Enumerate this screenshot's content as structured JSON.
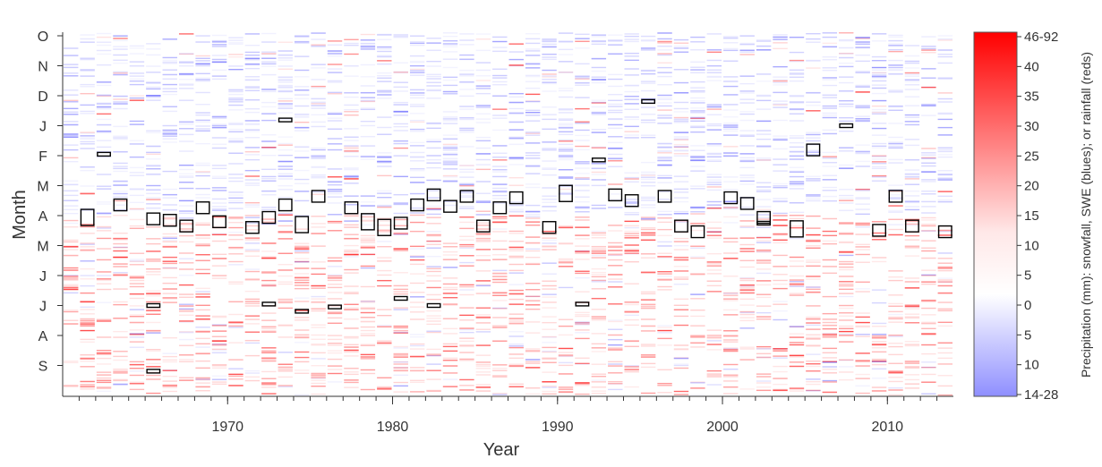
{
  "chart_data": {
    "type": "heatmap",
    "title": "",
    "xlabel": "Year",
    "ylabel": "Month",
    "x_range": [
      1960,
      2014
    ],
    "x_ticks": [
      {
        "value": 1970,
        "label": "1970"
      },
      {
        "value": 1980,
        "label": "1980"
      },
      {
        "value": 1990,
        "label": "1990"
      },
      {
        "value": 2000,
        "label": "2000"
      },
      {
        "value": 2010,
        "label": "2010"
      }
    ],
    "x_minor_tick_step": 1,
    "y_order": "October at top, water year running downward to September",
    "y_ticks": [
      "O",
      "N",
      "D",
      "J",
      "F",
      "M",
      "A",
      "M",
      "J",
      "J",
      "A",
      "S"
    ],
    "grid": false,
    "colorbar": {
      "label": "Precipitation (mm): snowfall, SWE (blues); or rainfall (reds)",
      "ticks": [
        "46-92",
        "40",
        "35",
        "30",
        "25",
        "20",
        "15",
        "10",
        "5",
        "0",
        "5",
        "10",
        "14-28"
      ],
      "top_color": "#ff0000",
      "middle_color": "#ffffff",
      "bottom_color": "#8f8fff",
      "blue_scale": "snowfall / SWE",
      "red_scale": "rainfall"
    },
    "overlay_note_marks": "black-outlined boxes mark individual events per year",
    "highlight_events": [
      {
        "year": 1961,
        "month": "A",
        "size": "large"
      },
      {
        "year": 1962,
        "month": "F",
        "size": "thin"
      },
      {
        "year": 1963,
        "month": "M",
        "size": "medium"
      },
      {
        "year": 1965,
        "month": "A",
        "size": "medium"
      },
      {
        "year": 1965,
        "month": "J",
        "size": "thin"
      },
      {
        "year": 1965,
        "month": "S",
        "size": "thin"
      },
      {
        "year": 1966,
        "month": "A",
        "size": "medium"
      },
      {
        "year": 1967,
        "month": "A",
        "size": "medium"
      },
      {
        "year": 1968,
        "month": "M",
        "size": "medium"
      },
      {
        "year": 1969,
        "month": "A",
        "size": "medium"
      },
      {
        "year": 1971,
        "month": "A",
        "size": "medium"
      },
      {
        "year": 1972,
        "month": "A",
        "size": "medium"
      },
      {
        "year": 1972,
        "month": "J",
        "size": "thin"
      },
      {
        "year": 1973,
        "month": "M",
        "size": "medium"
      },
      {
        "year": 1973,
        "month": "J",
        "size": "thin"
      },
      {
        "year": 1974,
        "month": "A",
        "size": "large"
      },
      {
        "year": 1974,
        "month": "J",
        "size": "thin"
      },
      {
        "year": 1975,
        "month": "M",
        "size": "medium"
      },
      {
        "year": 1976,
        "month": "J",
        "size": "thin"
      },
      {
        "year": 1977,
        "month": "M",
        "size": "medium"
      },
      {
        "year": 1978,
        "month": "A",
        "size": "large"
      },
      {
        "year": 1979,
        "month": "A",
        "size": "large"
      },
      {
        "year": 1980,
        "month": "J",
        "size": "thin"
      },
      {
        "year": 1980,
        "month": "A",
        "size": "medium"
      },
      {
        "year": 1981,
        "month": "M",
        "size": "medium"
      },
      {
        "year": 1982,
        "month": "M",
        "size": "medium"
      },
      {
        "year": 1982,
        "month": "J",
        "size": "thin"
      },
      {
        "year": 1983,
        "month": "M",
        "size": "medium"
      },
      {
        "year": 1984,
        "month": "M",
        "size": "medium"
      },
      {
        "year": 1985,
        "month": "A",
        "size": "medium"
      },
      {
        "year": 1986,
        "month": "M",
        "size": "medium"
      },
      {
        "year": 1987,
        "month": "M",
        "size": "medium"
      },
      {
        "year": 1989,
        "month": "A",
        "size": "medium"
      },
      {
        "year": 1990,
        "month": "M",
        "size": "large"
      },
      {
        "year": 1991,
        "month": "J",
        "size": "thin"
      },
      {
        "year": 1992,
        "month": "F",
        "size": "thin"
      },
      {
        "year": 1993,
        "month": "M",
        "size": "medium"
      },
      {
        "year": 1994,
        "month": "M",
        "size": "medium"
      },
      {
        "year": 1995,
        "month": "D",
        "size": "thin"
      },
      {
        "year": 1996,
        "month": "M",
        "size": "medium"
      },
      {
        "year": 1997,
        "month": "A",
        "size": "medium"
      },
      {
        "year": 1998,
        "month": "A",
        "size": "medium"
      },
      {
        "year": 2000,
        "month": "M",
        "size": "medium"
      },
      {
        "year": 2001,
        "month": "M",
        "size": "medium"
      },
      {
        "year": 2002,
        "month": "A",
        "size": "medium"
      },
      {
        "year": 2002,
        "month": "A",
        "size": "thin"
      },
      {
        "year": 2004,
        "month": "A",
        "size": "large"
      },
      {
        "year": 2005,
        "month": "F",
        "size": "medium"
      },
      {
        "year": 2007,
        "month": "J",
        "size": "thin"
      },
      {
        "year": 2009,
        "month": "A",
        "size": "medium"
      },
      {
        "year": 2010,
        "month": "M",
        "size": "medium"
      },
      {
        "year": 2011,
        "month": "A",
        "size": "medium"
      },
      {
        "year": 2013,
        "month": "A",
        "size": "medium"
      }
    ]
  }
}
